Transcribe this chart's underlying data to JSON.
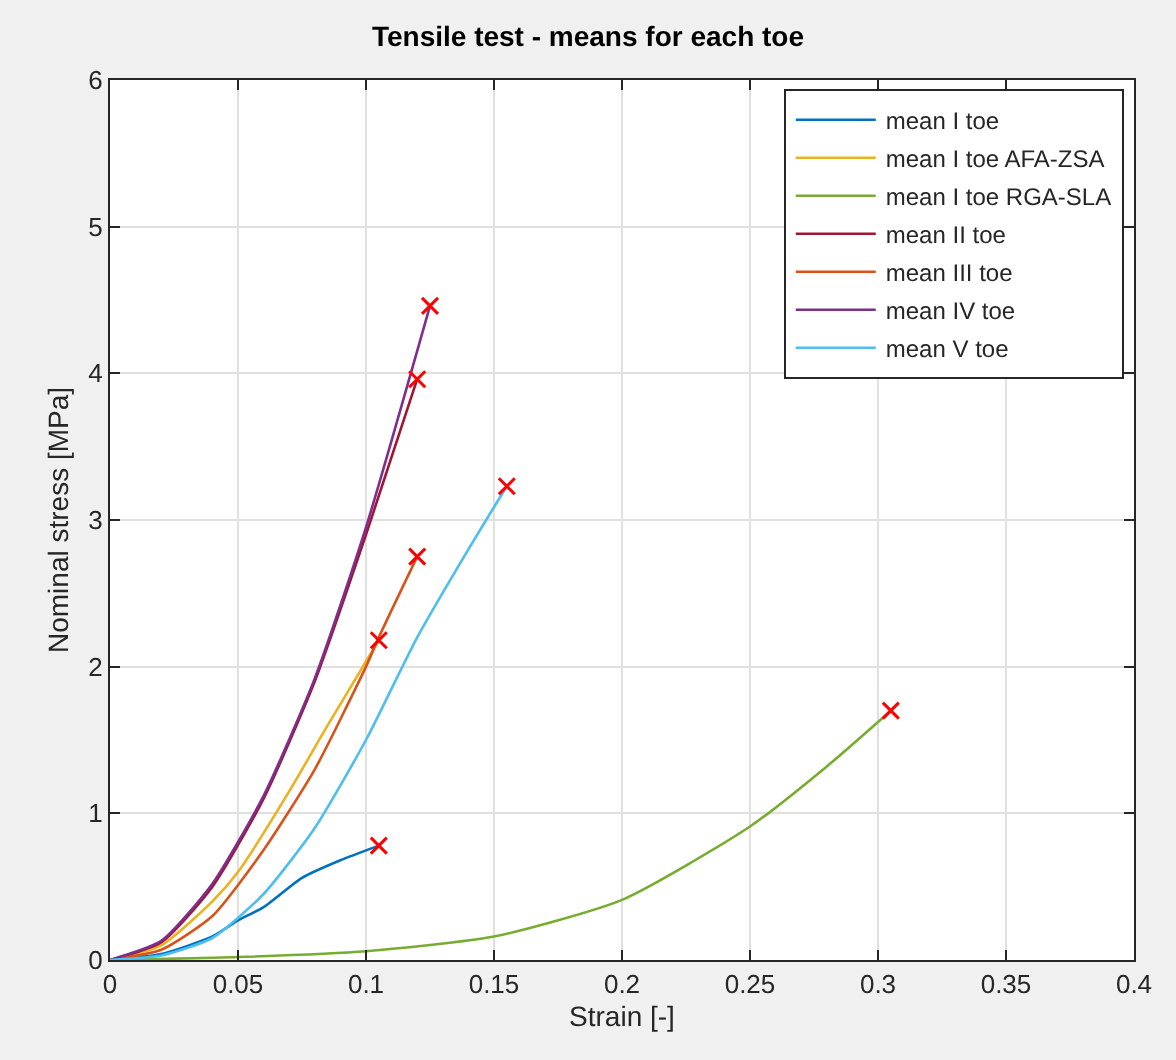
{
  "chart_data": {
    "type": "line",
    "title": "Tensile test - means for each toe",
    "xlabel": "Strain [-]",
    "ylabel": "Nominal stress [MPa]",
    "xlim": [
      0,
      0.4
    ],
    "xticks": [
      0,
      0.05,
      0.1,
      0.15,
      0.2,
      0.25,
      0.3,
      0.35,
      0.4
    ],
    "ylim": [
      0,
      6
    ],
    "yticks": [
      0,
      1,
      2,
      3,
      4,
      5,
      6
    ],
    "grid": true,
    "legend": "top right",
    "marker": "none",
    "line_style": "solid",
    "series": [
      {
        "name": "mean I toe",
        "color": "#0072bd",
        "x": [
          0,
          0.02,
          0.04,
          0.05,
          0.06,
          0.075,
          0.09,
          0.105
        ],
        "values": [
          0,
          0.04,
          0.16,
          0.27,
          0.36,
          0.56,
          0.68,
          0.78
        ]
      },
      {
        "name": "mean I toe AFA-ZSA",
        "color": "#edb120",
        "x": [
          0,
          0.02,
          0.04,
          0.05,
          0.07,
          0.085,
          0.105
        ],
        "values": [
          0,
          0.1,
          0.4,
          0.6,
          1.15,
          1.6,
          2.18
        ]
      },
      {
        "name": "mean I toe RGA-SLA",
        "color": "#77ac30",
        "x": [
          0,
          0.05,
          0.1,
          0.15,
          0.2,
          0.25,
          0.28,
          0.305
        ],
        "values": [
          0,
          0.02,
          0.06,
          0.16,
          0.41,
          0.91,
          1.32,
          1.7
        ]
      },
      {
        "name": "mean II toe",
        "color": "#a2142f",
        "x": [
          0,
          0.02,
          0.04,
          0.06,
          0.08,
          0.1,
          0.12
        ],
        "values": [
          0,
          0.12,
          0.5,
          1.1,
          1.9,
          2.9,
          3.96
        ]
      },
      {
        "name": "mean III toe",
        "color": "#d95319",
        "x": [
          0,
          0.02,
          0.04,
          0.06,
          0.08,
          0.1,
          0.105,
          0.12
        ],
        "values": [
          0,
          0.07,
          0.3,
          0.75,
          1.3,
          2.0,
          2.2,
          2.75
        ]
      },
      {
        "name": "mean IV toe",
        "color": "#7e2f8e",
        "x": [
          0,
          0.02,
          0.04,
          0.06,
          0.08,
          0.1,
          0.125
        ],
        "values": [
          0,
          0.13,
          0.52,
          1.12,
          1.92,
          2.95,
          4.46
        ]
      },
      {
        "name": "mean V toe",
        "color": "#4dbeee",
        "x": [
          0,
          0.02,
          0.04,
          0.06,
          0.08,
          0.1,
          0.12,
          0.14,
          0.155
        ],
        "values": [
          0,
          0.03,
          0.15,
          0.45,
          0.9,
          1.5,
          2.2,
          2.8,
          3.23
        ]
      },
      {
        "type": "scatter",
        "marker": "cross",
        "color": "#ff0000",
        "x": [
          0.105,
          0.105,
          0.305,
          0.12,
          0.12,
          0.125,
          0.155
        ],
        "values": [
          0.78,
          2.18,
          1.7,
          3.96,
          2.75,
          4.46,
          3.23
        ]
      }
    ]
  }
}
